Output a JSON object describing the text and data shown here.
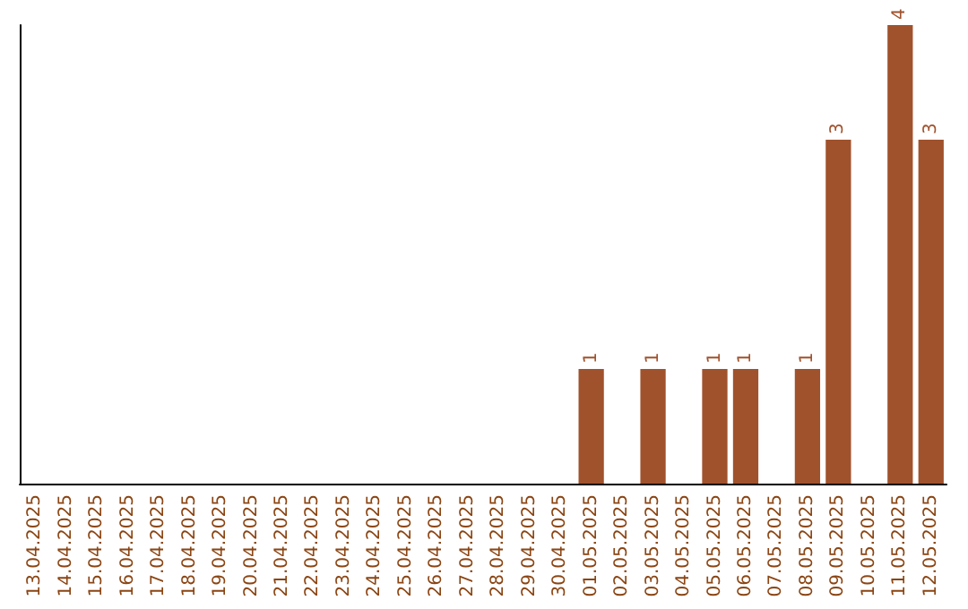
{
  "chart_data": {
    "type": "bar",
    "categories": [
      "13.04.2025",
      "14.04.2025",
      "15.04.2025",
      "16.04.2025",
      "17.04.2025",
      "18.04.2025",
      "19.04.2025",
      "20.04.2025",
      "21.04.2025",
      "22.04.2025",
      "23.04.2025",
      "24.04.2025",
      "25.04.2025",
      "26.04.2025",
      "27.04.2025",
      "28.04.2025",
      "29.04.2025",
      "30.04.2025",
      "01.05.2025",
      "02.05.2025",
      "03.05.2025",
      "04.05.2025",
      "05.05.2025",
      "06.05.2025",
      "07.05.2025",
      "08.05.2025",
      "09.05.2025",
      "10.05.2025",
      "11.05.2025",
      "12.05.2025"
    ],
    "values": [
      null,
      null,
      null,
      null,
      null,
      null,
      null,
      null,
      null,
      null,
      null,
      null,
      null,
      null,
      null,
      null,
      null,
      null,
      1,
      null,
      1,
      null,
      1,
      1,
      null,
      1,
      3,
      null,
      4,
      3
    ],
    "data_labels": true,
    "color": "#a0522d",
    "tick_labels": "x",
    "grid": false
  }
}
